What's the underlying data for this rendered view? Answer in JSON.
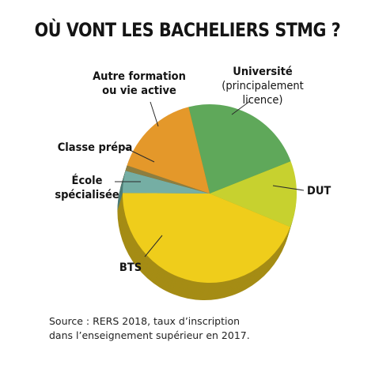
{
  "chart_data": {
    "type": "pie",
    "title": "OÙ VONT LES BACHELIERS STMG ?",
    "slices": [
      {
        "label": "Université (principalement licence)",
        "label_lines": [
          "Université",
          "(principalement",
          "licence)"
        ],
        "value": 23,
        "color": "#5fa85a",
        "side": "#3f7a3c"
      },
      {
        "label": "DUT",
        "label_lines": [
          "DUT"
        ],
        "value": 12,
        "color": "#c7d12f",
        "side": "#8f9620"
      },
      {
        "label": "BTS",
        "label_lines": [
          "BTS"
        ],
        "value": 44,
        "color": "#efcd1b",
        "side": "#a58c15"
      },
      {
        "label": "École spécialisée",
        "label_lines": [
          "École",
          "spécialisée"
        ],
        "value": 4,
        "color": "#75aea4",
        "side": "#4e7c75"
      },
      {
        "label": "Classe prépa",
        "label_lines": [
          "Classe prépa"
        ],
        "value": 1,
        "color": "#8d7e40",
        "side": "#5e5425"
      },
      {
        "label": "Autre formation ou vie active",
        "label_lines": [
          "Autre formation",
          "ou vie active"
        ],
        "value": 16,
        "color": "#e4982a",
        "side": "#a46c1a"
      }
    ]
  },
  "source_lines": [
    "Source : RERS 2018, taux d’inscription",
    "dans l’enseignement supérieur en 2017."
  ]
}
